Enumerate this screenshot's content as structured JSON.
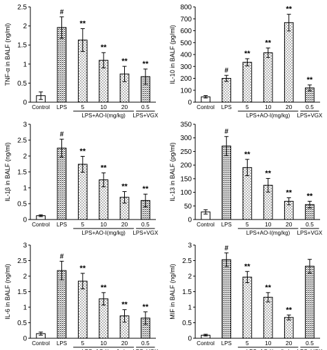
{
  "colors": {
    "ink": "#000000",
    "bar_fill": "#ffffff"
  },
  "chart_data": [
    {
      "type": "bar",
      "ylabel": "TNF-α in BALF (ng/ml)",
      "ylim": [
        0,
        2.5
      ],
      "yticks": [
        "0",
        "0.5",
        "1",
        "1.5",
        "2",
        "2.5"
      ],
      "categories": [
        "Control",
        "LPS",
        "5",
        "10",
        "20",
        "0.5"
      ],
      "values": [
        0.17,
        1.96,
        1.63,
        1.1,
        0.74,
        0.67
      ],
      "errors": [
        0.1,
        0.28,
        0.3,
        0.2,
        0.2,
        0.2
      ],
      "annotations": [
        "",
        "#",
        "**",
        "**",
        "**",
        "**"
      ],
      "bar_pattern": [
        "plain",
        "hatch",
        "dots",
        "dots",
        "dots",
        "hatch"
      ],
      "group_labels": [
        {
          "text": "LPS+AO-I(mg/kg)",
          "from": 2,
          "to": 4
        },
        {
          "text": "LPS+VGX",
          "from": 5,
          "to": 5
        }
      ]
    },
    {
      "type": "bar",
      "ylabel": "IL-10 in BALF (pg/ml)",
      "ylim": [
        0,
        800
      ],
      "yticks": [
        "0",
        "100",
        "200",
        "300",
        "400",
        "500",
        "600",
        "700",
        "800"
      ],
      "categories": [
        "Control",
        "LPS",
        "5",
        "10",
        "20",
        "0.5"
      ],
      "values": [
        45,
        200,
        335,
        415,
        668,
        120
      ],
      "errors": [
        10,
        25,
        30,
        40,
        70,
        25
      ],
      "annotations": [
        "",
        "#",
        "**",
        "**",
        "**",
        "**"
      ],
      "bar_pattern": [
        "plain",
        "dots",
        "dots",
        "dots",
        "dots",
        "hatch"
      ],
      "group_labels": [
        {
          "text": "LPS+AO-I(mg/kg)",
          "from": 2,
          "to": 4
        },
        {
          "text": "LPS+VGX",
          "from": 5,
          "to": 5
        }
      ]
    },
    {
      "type": "bar",
      "ylabel": "IL-1β in BALF (ng/ml)",
      "ylim": [
        0,
        3
      ],
      "yticks": [
        "0",
        "0.5",
        "1",
        "1.5",
        "2",
        "2.5",
        "3"
      ],
      "categories": [
        "Control",
        "LPS",
        "5",
        "10",
        "20",
        "0.5"
      ],
      "values": [
        0.12,
        2.25,
        1.74,
        1.25,
        0.7,
        0.6
      ],
      "errors": [
        0.03,
        0.28,
        0.25,
        0.22,
        0.18,
        0.2
      ],
      "annotations": [
        "",
        "#",
        "**",
        "**",
        "**",
        "**"
      ],
      "bar_pattern": [
        "plain",
        "hatch",
        "dots",
        "dots",
        "dots",
        "hatch"
      ],
      "group_labels": [
        {
          "text": "LPS+AO-I(mg/kg)",
          "from": 2,
          "to": 4
        },
        {
          "text": "LPS+VGX",
          "from": 5,
          "to": 5
        }
      ]
    },
    {
      "type": "bar",
      "ylabel": "IL-13 in BALF (pg/ml)",
      "ylim": [
        0,
        350
      ],
      "yticks": [
        "0",
        "50",
        "100",
        "150",
        "200",
        "250",
        "300",
        "350"
      ],
      "categories": [
        "Control",
        "LPS",
        "5",
        "10",
        "20",
        "0.5"
      ],
      "values": [
        28,
        270,
        191,
        126,
        67,
        55
      ],
      "errors": [
        8,
        35,
        30,
        25,
        13,
        12
      ],
      "annotations": [
        "",
        "#",
        "**",
        "**",
        "**",
        "**"
      ],
      "bar_pattern": [
        "plain",
        "hatch",
        "dots",
        "dots",
        "dots",
        "hatch"
      ],
      "group_labels": [
        {
          "text": "LPS+AO-I(mg/kg)",
          "from": 2,
          "to": 4
        },
        {
          "text": "LPS+VGX",
          "from": 5,
          "to": 5
        }
      ]
    },
    {
      "type": "bar",
      "ylabel": "IL-6 in BALF (ng/ml)",
      "ylim": [
        0,
        3
      ],
      "yticks": [
        "0",
        "0.5",
        "1",
        "1.5",
        "2",
        "2.5",
        "3"
      ],
      "categories": [
        "Control",
        "LPS",
        "5",
        "10",
        "20",
        "0.5"
      ],
      "values": [
        0.15,
        2.18,
        1.84,
        1.27,
        0.72,
        0.65
      ],
      "errors": [
        0.05,
        0.3,
        0.25,
        0.2,
        0.2,
        0.2
      ],
      "annotations": [
        "",
        "#",
        "**",
        "**",
        "**",
        "**"
      ],
      "bar_pattern": [
        "plain",
        "hatch",
        "dots",
        "dots",
        "dots",
        "hatch"
      ],
      "group_labels": [
        {
          "text": "LPS+AO-I(mg/kg)",
          "from": 2,
          "to": 4
        },
        {
          "text": "LPS+VGX",
          "from": 5,
          "to": 5
        }
      ]
    },
    {
      "type": "bar",
      "ylabel": "MIF in BALF (ng/ml)",
      "ylim": [
        0,
        3
      ],
      "yticks": [
        "0",
        "0.5",
        "1",
        "1.5",
        "2",
        "2.5",
        "3"
      ],
      "categories": [
        "Control",
        "LPS",
        "5",
        "10",
        "20",
        "0.5"
      ],
      "values": [
        0.1,
        2.53,
        1.97,
        1.32,
        0.67,
        2.32
      ],
      "errors": [
        0.03,
        0.22,
        0.18,
        0.15,
        0.08,
        0.22
      ],
      "annotations": [
        "",
        "#",
        "**",
        "**",
        "**",
        ""
      ],
      "bar_pattern": [
        "plain",
        "hatch",
        "dots",
        "dots",
        "dots",
        "hatch"
      ],
      "group_labels": [
        {
          "text": "LPS+AO-I(mg/kg)",
          "from": 2,
          "to": 4
        },
        {
          "text": "LPS+VGX",
          "from": 5,
          "to": 5
        }
      ]
    }
  ]
}
